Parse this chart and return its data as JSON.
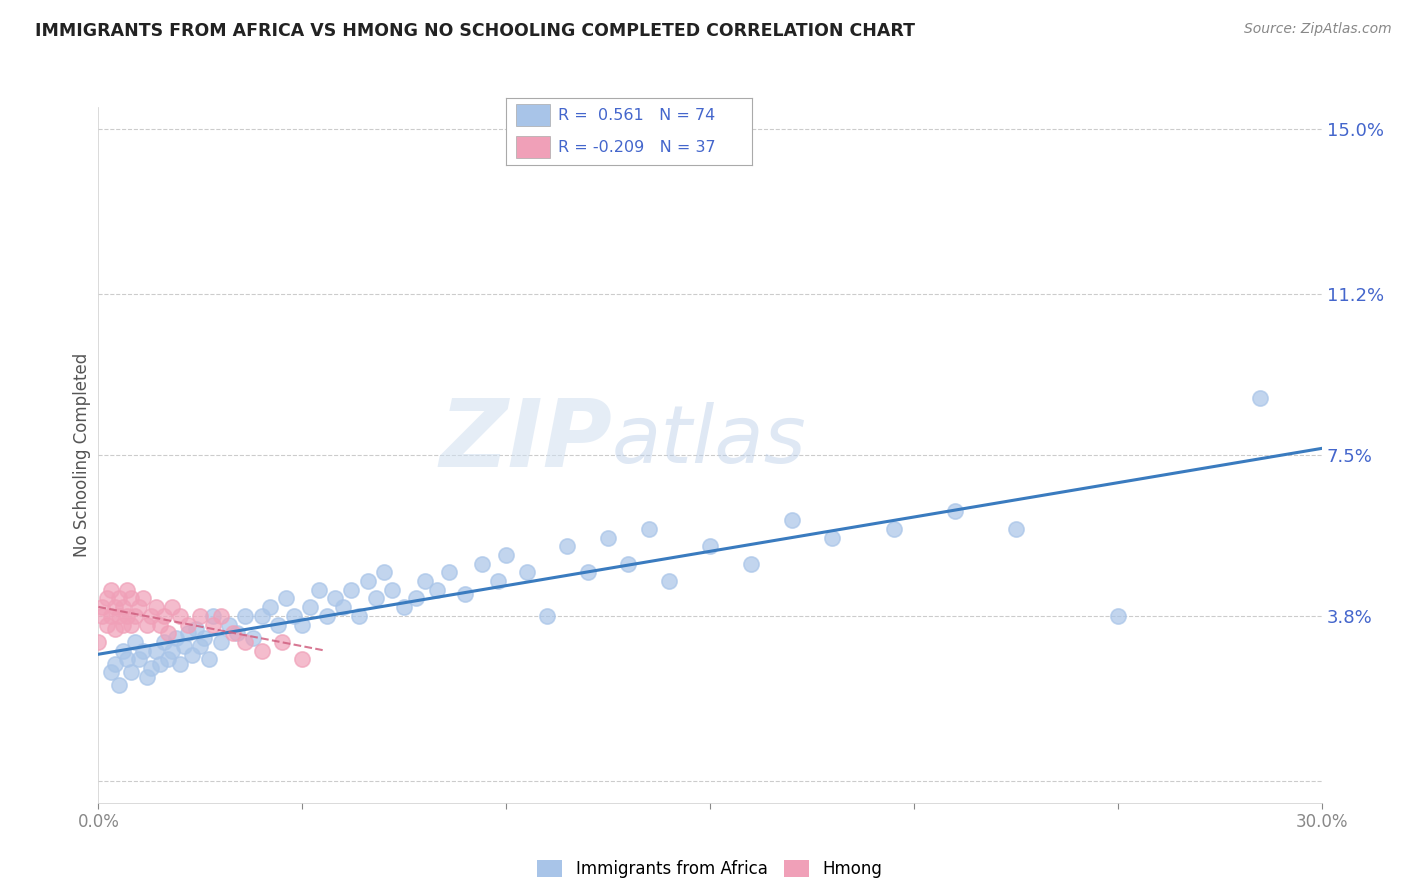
{
  "title": "IMMIGRANTS FROM AFRICA VS HMONG NO SCHOOLING COMPLETED CORRELATION CHART",
  "source": "Source: ZipAtlas.com",
  "ylabel": "No Schooling Completed",
  "xlim": [
    0.0,
    0.3
  ],
  "ylim": [
    -0.005,
    0.155
  ],
  "ytick_positions": [
    0.0,
    0.038,
    0.075,
    0.112,
    0.15
  ],
  "yticklabels": [
    "",
    "3.8%",
    "7.5%",
    "11.2%",
    "15.0%"
  ],
  "legend1_R": "0.561",
  "legend1_N": "74",
  "legend2_R": "-0.209",
  "legend2_N": "37",
  "africa_color": "#a8c4e8",
  "hmong_color": "#f0a0b8",
  "africa_line_color": "#3a7bbf",
  "hmong_line_color": "#d06080",
  "text_color": "#4466cc",
  "watermark_zip": "ZIP",
  "watermark_atlas": "atlas",
  "africa_x": [
    0.003,
    0.004,
    0.005,
    0.006,
    0.007,
    0.008,
    0.009,
    0.01,
    0.011,
    0.012,
    0.013,
    0.014,
    0.015,
    0.016,
    0.017,
    0.018,
    0.019,
    0.02,
    0.021,
    0.022,
    0.023,
    0.024,
    0.025,
    0.026,
    0.027,
    0.028,
    0.03,
    0.032,
    0.034,
    0.036,
    0.038,
    0.04,
    0.042,
    0.044,
    0.046,
    0.048,
    0.05,
    0.052,
    0.054,
    0.056,
    0.058,
    0.06,
    0.062,
    0.064,
    0.066,
    0.068,
    0.07,
    0.072,
    0.075,
    0.078,
    0.08,
    0.083,
    0.086,
    0.09,
    0.094,
    0.098,
    0.1,
    0.105,
    0.11,
    0.115,
    0.12,
    0.125,
    0.13,
    0.135,
    0.14,
    0.15,
    0.16,
    0.17,
    0.18,
    0.195,
    0.21,
    0.225,
    0.25,
    0.285
  ],
  "africa_y": [
    0.025,
    0.027,
    0.022,
    0.03,
    0.028,
    0.025,
    0.032,
    0.028,
    0.03,
    0.024,
    0.026,
    0.03,
    0.027,
    0.032,
    0.028,
    0.03,
    0.033,
    0.027,
    0.031,
    0.034,
    0.029,
    0.035,
    0.031,
    0.033,
    0.028,
    0.038,
    0.032,
    0.036,
    0.034,
    0.038,
    0.033,
    0.038,
    0.04,
    0.036,
    0.042,
    0.038,
    0.036,
    0.04,
    0.044,
    0.038,
    0.042,
    0.04,
    0.044,
    0.038,
    0.046,
    0.042,
    0.048,
    0.044,
    0.04,
    0.042,
    0.046,
    0.044,
    0.048,
    0.043,
    0.05,
    0.046,
    0.052,
    0.048,
    0.038,
    0.054,
    0.048,
    0.056,
    0.05,
    0.058,
    0.046,
    0.054,
    0.05,
    0.06,
    0.056,
    0.058,
    0.062,
    0.058,
    0.038,
    0.088
  ],
  "hmong_x": [
    0.0,
    0.001,
    0.001,
    0.002,
    0.002,
    0.003,
    0.003,
    0.004,
    0.004,
    0.005,
    0.005,
    0.006,
    0.006,
    0.007,
    0.007,
    0.008,
    0.008,
    0.009,
    0.01,
    0.011,
    0.012,
    0.013,
    0.014,
    0.015,
    0.016,
    0.017,
    0.018,
    0.02,
    0.022,
    0.025,
    0.028,
    0.03,
    0.033,
    0.036,
    0.04,
    0.045,
    0.05
  ],
  "hmong_y": [
    0.032,
    0.04,
    0.038,
    0.042,
    0.036,
    0.044,
    0.038,
    0.04,
    0.035,
    0.038,
    0.042,
    0.036,
    0.04,
    0.038,
    0.044,
    0.036,
    0.042,
    0.038,
    0.04,
    0.042,
    0.036,
    0.038,
    0.04,
    0.036,
    0.038,
    0.034,
    0.04,
    0.038,
    0.036,
    0.038,
    0.036,
    0.038,
    0.034,
    0.032,
    0.03,
    0.032,
    0.028
  ]
}
